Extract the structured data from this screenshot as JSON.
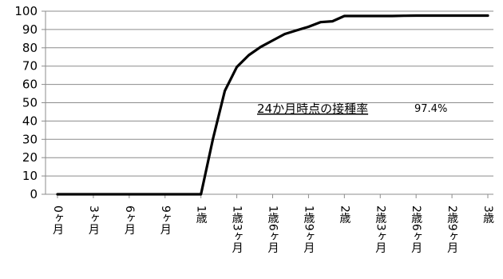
{
  "chart_data": {
    "type": "line",
    "title": "",
    "xlabel": "",
    "ylabel": "",
    "ylim": [
      0,
      100
    ],
    "y_ticks": [
      0,
      10,
      20,
      30,
      40,
      50,
      60,
      70,
      80,
      90,
      100
    ],
    "grid": "horizontal",
    "x_tick_labels": [
      "0ヶ月",
      "3ヶ月",
      "6ヶ月",
      "9ヶ月",
      "1歳",
      "1歳3ヶ月",
      "1歳6ヶ月",
      "1歳9ヶ月",
      "2歳",
      "2歳3ヶ月",
      "2歳6ヶ月",
      "2歳9ヶ月",
      "3歳"
    ],
    "x_unit": "months",
    "xlim": [
      0,
      36
    ],
    "series": [
      {
        "color": "#000000",
        "x": [
          0,
          3,
          6,
          9,
          11,
          12,
          13,
          14,
          15,
          16,
          17,
          18,
          19,
          20,
          21,
          22,
          23,
          24,
          25,
          26,
          27,
          28,
          29,
          30,
          31,
          32,
          33,
          34,
          35,
          36
        ],
        "values": [
          0,
          0,
          0,
          0,
          0,
          0,
          30,
          56.5,
          69.5,
          76,
          80.5,
          84,
          87.5,
          89.5,
          91.5,
          94,
          94.5,
          97.4,
          97.4,
          97.4,
          97.4,
          97.4,
          97.5,
          97.6,
          97.6,
          97.6,
          97.6,
          97.6,
          97.6,
          97.6
        ]
      }
    ],
    "annotation": {
      "text": "24か月時点の接種率",
      "value": "97.4%"
    }
  }
}
